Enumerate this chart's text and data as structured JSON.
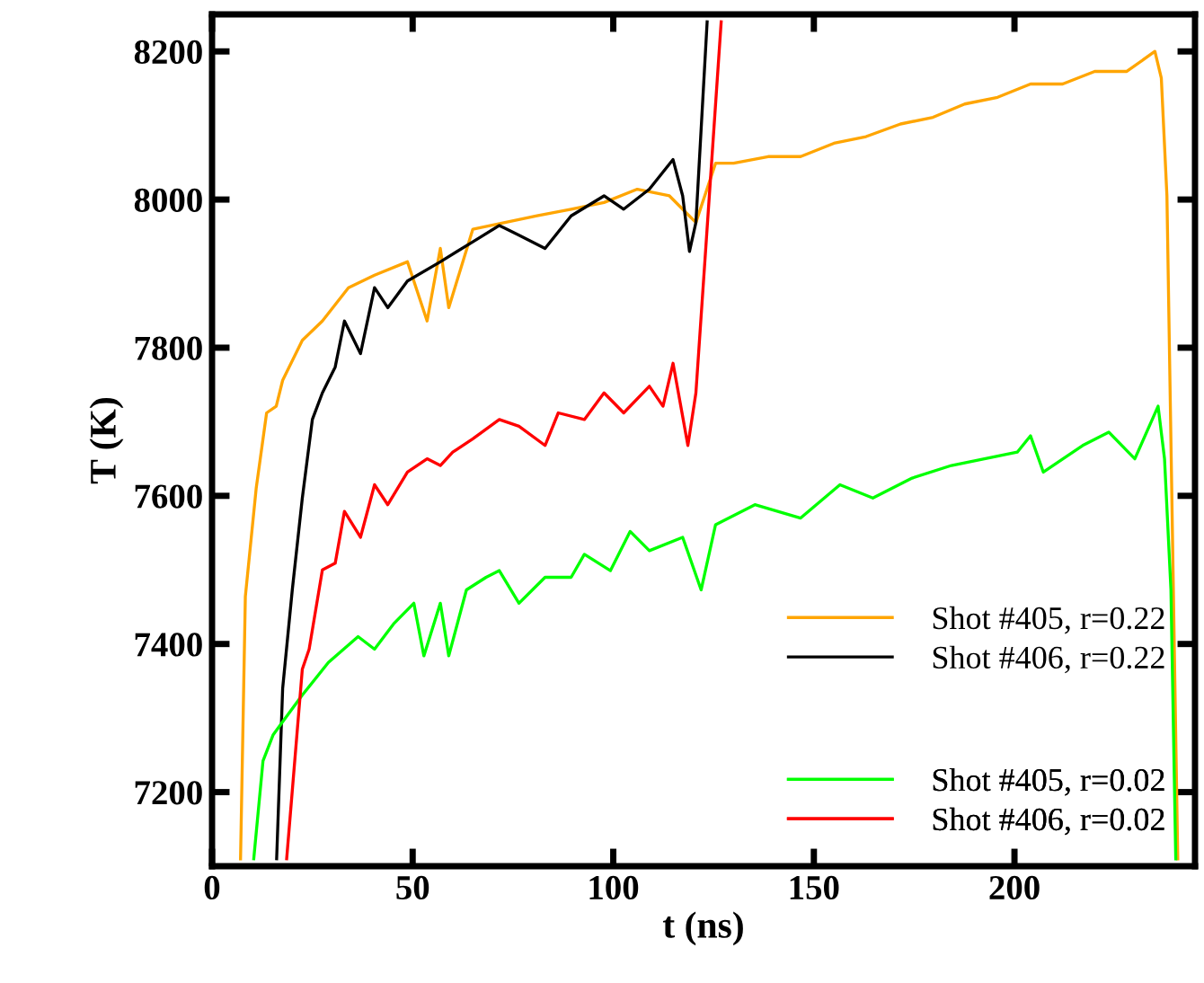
{
  "chart_data": {
    "type": "line",
    "xlabel": "t (ns)",
    "ylabel": "T (K)",
    "xlim": [
      0,
      245
    ],
    "ylim": [
      7100,
      8250
    ],
    "xticks": [
      0,
      50,
      100,
      150,
      200
    ],
    "yticks": [
      7200,
      7400,
      7600,
      7800,
      8000,
      8200
    ],
    "grid": false,
    "legend": "bottom right",
    "marker": "none",
    "line_style": "solid",
    "series": [
      {
        "name": "Shot #405, r=0.22",
        "color": "#ffa500",
        "x": [
          7.1,
          8.3,
          11,
          13.6,
          16,
          17.6,
          22.5,
          27.5,
          34,
          40.5,
          48.7,
          53.6,
          56.9,
          59,
          65,
          73,
          81,
          89.5,
          97.7,
          106,
          114,
          120.6,
          125.5,
          130,
          138.6,
          146.7,
          155,
          163,
          171.6,
          179.7,
          187.6,
          195.8,
          204,
          212,
          220,
          228,
          235,
          236.6,
          238,
          240.7
        ],
        "values": [
          7110,
          7464,
          7610,
          7712,
          7721,
          7756,
          7810,
          7836,
          7881,
          7898,
          7916,
          7836,
          7934,
          7854,
          7960,
          7969,
          7978,
          7987,
          7996,
          8014,
          8005,
          7969,
          8049,
          8049,
          8058,
          8058,
          8076,
          8085,
          8102,
          8111,
          8129,
          8138,
          8156,
          8156,
          8173,
          8173,
          8200,
          8164,
          8005,
          7110
        ]
      },
      {
        "name": "Shot #406, r=0.22",
        "color": "#000000",
        "x": [
          16.1,
          17.6,
          20,
          22.5,
          25,
          27.5,
          30.7,
          33,
          37,
          40.5,
          43.8,
          48.7,
          56.9,
          65,
          71.6,
          76.5,
          83,
          89.5,
          97.7,
          102.6,
          109,
          114.9,
          117.3,
          119,
          120.6,
          123.4
        ],
        "values": [
          7110,
          7340,
          7473,
          7597,
          7703,
          7739,
          7774,
          7836,
          7792,
          7881,
          7854,
          7890,
          7916,
          7943,
          7965,
          7952,
          7934,
          7978,
          8005,
          7987,
          8014,
          8054,
          8005,
          7930,
          7969,
          8240
        ]
      },
      {
        "name": "Shot #405, r=0.02",
        "color": "#00ff00",
        "x": [
          10.4,
          12.7,
          15.2,
          17.6,
          22.5,
          29,
          36.4,
          40.5,
          45.4,
          50.3,
          52.8,
          56.9,
          59,
          63.4,
          68.3,
          71.6,
          76.5,
          83,
          89.5,
          92.8,
          99.3,
          104.2,
          109,
          117.3,
          121.9,
          125.5,
          135.3,
          146.7,
          156.5,
          164.7,
          174.5,
          184.3,
          192.5,
          200.7,
          204,
          207.2,
          217,
          223.5,
          230,
          235.8,
          237.4,
          239,
          240.2
        ],
        "values": [
          7110,
          7242,
          7277,
          7295,
          7331,
          7375,
          7410,
          7393,
          7428,
          7455,
          7384,
          7455,
          7384,
          7473,
          7490,
          7499,
          7455,
          7490,
          7490,
          7521,
          7499,
          7552,
          7526,
          7544,
          7473,
          7561,
          7588,
          7570,
          7615,
          7597,
          7624,
          7641,
          7650,
          7659,
          7681,
          7632,
          7668,
          7686,
          7650,
          7721,
          7650,
          7473,
          7110
        ]
      },
      {
        "name": "Shot #406, r=0.02",
        "color": "#ff0000",
        "x": [
          18.6,
          22.5,
          24.2,
          27.5,
          30.7,
          33,
          37,
          40.5,
          43.8,
          48.7,
          53.6,
          56.9,
          60,
          65,
          71.6,
          76.5,
          83,
          86.3,
          92.8,
          97.7,
          102.6,
          109,
          112.4,
          114.9,
          118.6,
          120.6,
          126.9
        ],
        "values": [
          7110,
          7366,
          7393,
          7500,
          7509,
          7579,
          7544,
          7615,
          7588,
          7632,
          7650,
          7641,
          7659,
          7677,
          7703,
          7694,
          7668,
          7712,
          7703,
          7739,
          7712,
          7748,
          7721,
          7779,
          7668,
          7739,
          8240
        ]
      }
    ]
  }
}
